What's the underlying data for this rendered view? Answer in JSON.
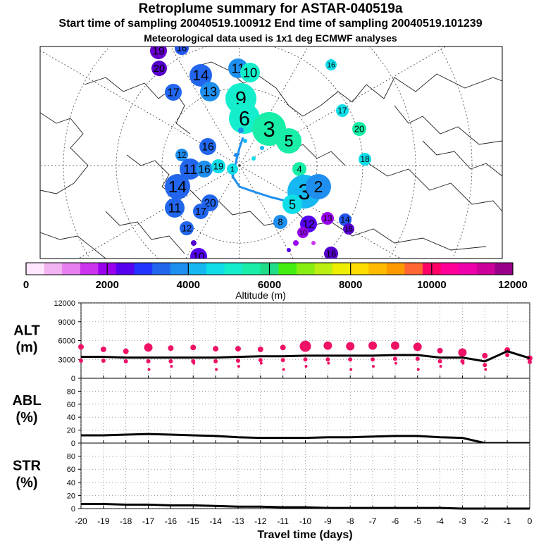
{
  "titles": {
    "main": "Retroplume summary for ASTAR-040519a",
    "sampling": "Start time of sampling 20040519.100912     End time of sampling 20040519.101239",
    "met": "Meteorological data used is 1x1 deg ECMWF analyses"
  },
  "chart_data": [
    {
      "type": "scatter",
      "name": "map",
      "description_label": "Altitude (m)",
      "colorbar": {
        "min": 0,
        "max": 12000,
        "ticks": [
          "0",
          "2000",
          "4000",
          "6000",
          "8000",
          "10000",
          "12000"
        ],
        "label": "Altitude (m)",
        "colors": [
          "#ffe6ff",
          "#f2b3f2",
          "#e680f0",
          "#cc33ee",
          "#9900ee",
          "#5500ee",
          "#2233ff",
          "#2266ee",
          "#1f8fef",
          "#15b8f0",
          "#10dde8",
          "#14eecc",
          "#18eea8",
          "#1fdd88",
          "#44ee11",
          "#88ee11",
          "#bbee11",
          "#eeee00",
          "#ffdd00",
          "#ffbb00",
          "#ff9900",
          "#ff6633",
          "#ff0066",
          "#ff0099",
          "#ee00aa",
          "#cc0099",
          "#990088"
        ]
      },
      "labels": [
        {
          "t": "19",
          "c": "#6600cc"
        },
        {
          "t": "16",
          "c": "#2255ee"
        },
        {
          "t": "20",
          "c": "#5500cc"
        },
        {
          "t": "14",
          "c": "#2266ee"
        },
        {
          "t": "11",
          "c": "#1f8fef"
        },
        {
          "t": "10",
          "c": "#14eecc"
        },
        {
          "t": "16",
          "c": "#10dde8"
        },
        {
          "t": "17",
          "c": "#2266ee"
        },
        {
          "t": "13",
          "c": "#1f8fef"
        },
        {
          "t": "9",
          "c": "#14eecc"
        },
        {
          "t": "17",
          "c": "#10dde8"
        },
        {
          "t": "6",
          "c": "#14eecc"
        },
        {
          "t": "3",
          "c": "#18eea8"
        },
        {
          "t": "20",
          "c": "#18eea8"
        },
        {
          "t": "5",
          "c": "#18eea8"
        },
        {
          "t": "12",
          "c": "#1f8fef"
        },
        {
          "t": "16",
          "c": "#2266ee"
        },
        {
          "t": "18",
          "c": "#10dde8"
        },
        {
          "t": "11",
          "c": "#2266ee"
        },
        {
          "t": "16",
          "c": "#1f8fef"
        },
        {
          "t": "19",
          "c": "#10dde8"
        },
        {
          "t": "14",
          "c": "#2266ee"
        },
        {
          "t": "1",
          "c": "#10dde8"
        },
        {
          "t": "4",
          "c": "#18eea8"
        },
        {
          "t": "3",
          "c": "#15b8f0"
        },
        {
          "t": "2",
          "c": "#1f8fef"
        },
        {
          "t": "11",
          "c": "#2266ee"
        },
        {
          "t": "20",
          "c": "#2266ee"
        },
        {
          "t": "17",
          "c": "#2266ee"
        },
        {
          "t": "5",
          "c": "#10dde8"
        },
        {
          "t": "8",
          "c": "#1f8fef"
        },
        {
          "t": "12",
          "c": "#5500ee"
        },
        {
          "t": "13",
          "c": "#9900ee"
        },
        {
          "t": "14",
          "c": "#2255ee"
        },
        {
          "t": "15",
          "c": "#5500cc"
        },
        {
          "t": "12",
          "c": "#2266ee"
        },
        {
          "t": "10",
          "c": "#9900ee"
        },
        {
          "t": "16",
          "c": "#5500cc"
        },
        {
          "t": "10",
          "c": "#5500ee"
        }
      ]
    },
    {
      "type": "scatter",
      "name": "ALT",
      "ylabel": "ALT\n(m)",
      "ylim": [
        0,
        12000
      ],
      "yticks": [
        "12000",
        "9000",
        "6000",
        "3000",
        "0"
      ],
      "x": [
        -20,
        -19,
        -18,
        -17,
        -16,
        -15,
        -14,
        -13,
        -12,
        -11,
        -10,
        -9,
        -8,
        -7,
        -6,
        -5,
        -4,
        -3,
        -2,
        -1,
        0
      ],
      "mean_line": [
        3400,
        3400,
        3300,
        3300,
        3300,
        3300,
        3300,
        3400,
        3500,
        3500,
        3600,
        3600,
        3600,
        3600,
        3700,
        3700,
        3300,
        3300,
        2700,
        4300,
        3200
      ],
      "upper_points": [
        5000,
        4600,
        4300,
        4900,
        4800,
        4900,
        4700,
        4700,
        4600,
        4900,
        5100,
        5200,
        5100,
        5200,
        5200,
        5000,
        4400,
        4100,
        3600,
        4500,
        3200
      ],
      "marker_color": "#ee1166"
    },
    {
      "type": "line",
      "name": "ABL",
      "ylabel": "ABL\n(%)",
      "ylim": [
        0,
        100
      ],
      "yticks": [
        "80",
        "60",
        "40",
        "20",
        "0"
      ],
      "x": [
        -20,
        -19,
        -18,
        -17,
        -16,
        -15,
        -14,
        -13,
        -12,
        -11,
        -10,
        -9,
        -8,
        -7,
        -6,
        -5,
        -4,
        -3,
        -2,
        -1,
        0
      ],
      "values": [
        12,
        12,
        13,
        14,
        13,
        12,
        11,
        9,
        8,
        8,
        8,
        9,
        9,
        10,
        11,
        11,
        9,
        8,
        0,
        0,
        0
      ]
    },
    {
      "type": "line",
      "name": "STR",
      "ylabel": "STR\n(%)",
      "ylim": [
        0,
        100
      ],
      "yticks": [
        "80",
        "60",
        "40",
        "20",
        "0"
      ],
      "x": [
        -20,
        -19,
        -18,
        -17,
        -16,
        -15,
        -14,
        -13,
        -12,
        -11,
        -10,
        -9,
        -8,
        -7,
        -6,
        -5,
        -4,
        -3,
        -2,
        -1,
        0
      ],
      "values": [
        7,
        7,
        6,
        6,
        5,
        5,
        4,
        3,
        3,
        2,
        2,
        1,
        1,
        1,
        1,
        1,
        1,
        0,
        0,
        0,
        0
      ],
      "xlabel": "Travel time (days)",
      "xticks": [
        "-20",
        "-19",
        "-18",
        "-17",
        "-16",
        "-15",
        "-14",
        "-13",
        "-12",
        "-11",
        "-10",
        "-9",
        "-8",
        "-7",
        "-6",
        "-5",
        "-4",
        "-3",
        "-2",
        "-1",
        "0"
      ]
    }
  ]
}
